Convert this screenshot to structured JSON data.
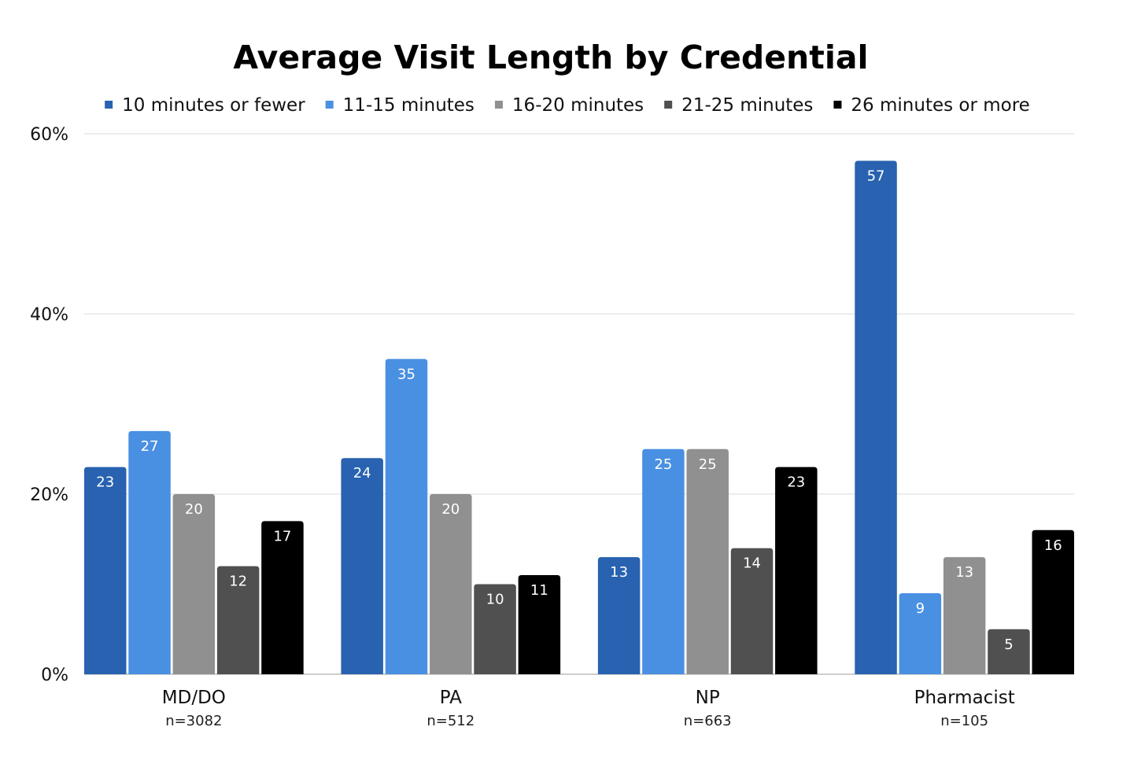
{
  "chart_data": {
    "type": "bar",
    "title": "Average Visit Length by Credential",
    "categories": [
      "MD/DO",
      "PA",
      "NP",
      "Pharmacist"
    ],
    "sample_sizes": [
      "n=3082",
      "n=512",
      "n=663",
      "n=105"
    ],
    "series": [
      {
        "name": "10 minutes or fewer",
        "color": "#2862b0",
        "values": [
          23,
          24,
          13,
          57
        ]
      },
      {
        "name": "11-15 minutes",
        "color": "#4a90e2",
        "values": [
          27,
          35,
          25,
          9
        ]
      },
      {
        "name": "16-20 minutes",
        "color": "#909090",
        "values": [
          20,
          20,
          25,
          13
        ]
      },
      {
        "name": "21-25 minutes",
        "color": "#505050",
        "values": [
          12,
          10,
          14,
          5
        ]
      },
      {
        "name": "26 minutes or more",
        "color": "#000000",
        "values": [
          17,
          11,
          23,
          16
        ]
      }
    ],
    "yticks": [
      "0%",
      "20%",
      "40%",
      "60%"
    ],
    "ylim": [
      0,
      60
    ],
    "legend_position": "top",
    "grid": true,
    "xlabel": "",
    "ylabel": ""
  }
}
